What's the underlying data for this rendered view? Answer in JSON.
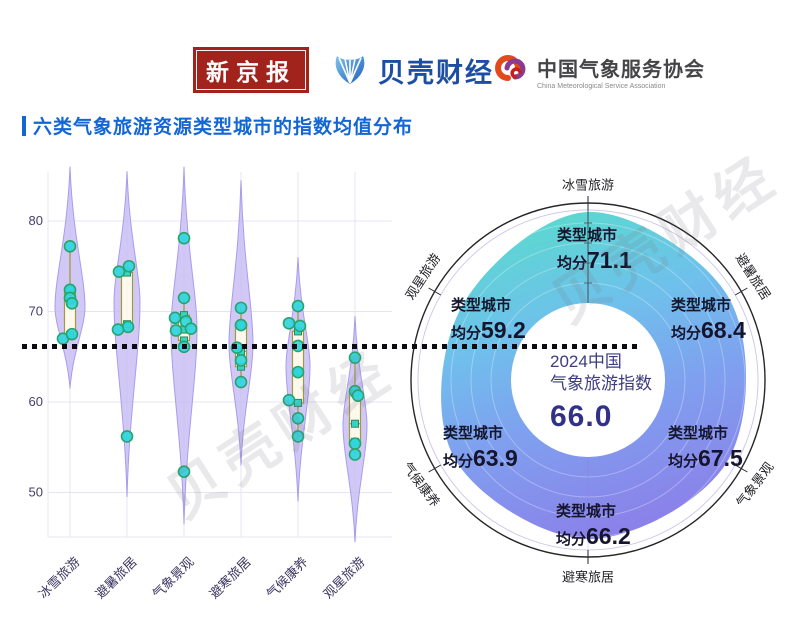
{
  "header": {
    "logo_xjb": "新京报",
    "logo_beike": "贝壳财经",
    "logo_cmsa_cn": "中国气象服务协会",
    "logo_cmsa_en": "China Meteorological Service Association"
  },
  "title": "六类气象旅游资源类型城市的指数均值分布",
  "watermark": {
    "text": "贝壳财经"
  },
  "colors": {
    "title_blue": "#1366d6",
    "xjb_red": "#a2231c",
    "beike_blue": "#1c4fa4",
    "violin_fill": "#c6baf2",
    "violin_edge": "#a99ced",
    "box_fill": "#fffced",
    "box_edge": "#a09a42",
    "point_fill": "#30d6df",
    "point_edge": "#28a46b",
    "ring_teal": "#5bd9cf",
    "ring_blue": "#6fc0ec",
    "ring_purple": "#8c7ee9",
    "center_text": "#31318a"
  },
  "chart_data": [
    {
      "type": "violin",
      "title": "六类气象旅游资源类型城市的指数均值分布",
      "categories": [
        "冰雪旅游",
        "避暑旅居",
        "气象景观",
        "避寒旅居",
        "气候康养",
        "观星旅游"
      ],
      "yticks": [
        "80",
        "70",
        "60",
        "50"
      ],
      "ylim": [
        44,
        86
      ],
      "grid": true,
      "reference_value": 66.0,
      "violins": [
        {
          "category": "冰雪旅游",
          "range": [
            61.5,
            86
          ],
          "peak": 70.5,
          "halfwidth": 15,
          "box": {
            "q1": 67.4,
            "median": 71.2,
            "q3": 72.4
          },
          "whiskers": [
            67.0,
            77.2
          ],
          "points": [
            [
              0,
              77.2
            ],
            [
              0,
              72.4
            ],
            [
              0,
              71.5
            ],
            [
              2,
              70.9
            ],
            [
              -7,
              67.0
            ],
            [
              2,
              67.5
            ]
          ]
        },
        {
          "category": "避暑旅居",
          "range": [
            49.5,
            85.5
          ],
          "peak": 71,
          "halfwidth": 13,
          "box": {
            "q1": 68.2,
            "median": 68.6,
            "q3": 74.3
          },
          "whiskers": [
            68.0,
            75.0
          ],
          "points": [
            [
              2,
              75.0
            ],
            [
              -8,
              74.4
            ],
            [
              1,
              68.3
            ],
            [
              -9,
              68.0
            ],
            [
              0,
              56.2
            ]
          ]
        },
        {
          "category": "气象景观",
          "range": [
            46.5,
            86
          ],
          "peak": 68,
          "halfwidth": 13,
          "box": {
            "q1": 66.8,
            "median": 68.0,
            "q3": 69.6
          },
          "whiskers": [
            66.1,
            71.5
          ],
          "points": [
            [
              0,
              78.1
            ],
            [
              0,
              71.5
            ],
            [
              -9,
              69.3
            ],
            [
              2,
              68.9
            ],
            [
              -8,
              67.9
            ],
            [
              7,
              68.1
            ],
            [
              0,
              66.1
            ],
            [
              0,
              52.3
            ]
          ]
        },
        {
          "category": "避寒旅居",
          "range": [
            53,
            84.5
          ],
          "peak": 66.5,
          "halfwidth": 12,
          "box": {
            "q1": 63.9,
            "median": 65.6,
            "q3": 68.5
          },
          "whiskers": [
            62.2,
            70.4
          ],
          "points": [
            [
              0,
              70.4
            ],
            [
              0,
              68.5
            ],
            [
              -4,
              66.0
            ],
            [
              0,
              64.6
            ],
            [
              0,
              62.2
            ]
          ]
        },
        {
          "category": "气候康养",
          "range": [
            49,
            76
          ],
          "peak": 64,
          "halfwidth": 12,
          "box": {
            "q1": 59.9,
            "median": 63.3,
            "q3": 67.8
          },
          "whiskers": [
            56.2,
            70.6
          ],
          "points": [
            [
              0,
              70.6
            ],
            [
              -9,
              68.7
            ],
            [
              2,
              68.4
            ],
            [
              0,
              66.2
            ],
            [
              0,
              63.3
            ],
            [
              -9,
              60.2
            ],
            [
              0,
              58.2
            ],
            [
              0,
              56.2
            ]
          ]
        },
        {
          "category": "观星旅游",
          "range": [
            44.5,
            69.5
          ],
          "peak": 57.5,
          "halfwidth": 12,
          "box": {
            "q1": 55.6,
            "median": 57.6,
            "q3": 61.0
          },
          "whiskers": [
            54.2,
            64.9
          ],
          "points": [
            [
              0,
              64.9
            ],
            [
              0,
              61.2
            ],
            [
              3,
              60.7
            ],
            [
              0,
              55.4
            ],
            [
              0,
              54.2
            ]
          ]
        }
      ]
    },
    {
      "type": "radial_area",
      "categories": [
        "冰雪旅游",
        "避暑旅居",
        "气象景观",
        "避寒旅居",
        "气候康养",
        "观星旅游"
      ],
      "values": [
        71.1,
        68.4,
        67.5,
        66.2,
        63.9,
        59.2
      ],
      "label_prefix": "类型城市",
      "score_prefix": "均分",
      "center_line1": "2024中国",
      "center_line2": "气象旅游指数",
      "center_value": "66.0",
      "rlim": [
        40,
        76
      ],
      "legend": "none",
      "grid": true
    }
  ]
}
